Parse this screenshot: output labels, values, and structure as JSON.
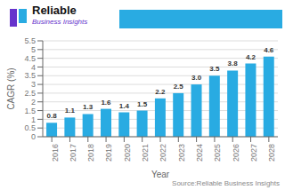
{
  "chart_data": {
    "type": "bar",
    "title": "Reliable",
    "subtitle": "Business Insights",
    "xlabel": "Year",
    "ylabel": "CAGR (%)",
    "categories": [
      "2016",
      "2017",
      "2018",
      "2019",
      "2020",
      "2021",
      "2022",
      "2023",
      "2024",
      "2025",
      "2026",
      "2027",
      "2028"
    ],
    "values": [
      0.8,
      1.1,
      1.3,
      1.6,
      1.4,
      1.5,
      2.2,
      2.5,
      3.0,
      3.5,
      3.8,
      4.2,
      4.6
    ],
    "value_labels": [
      "0.8",
      "1.1",
      "1.3",
      "1.6",
      "1.4",
      "1.5",
      "2.2",
      "2.5",
      "3.0",
      "3.5",
      "3.8",
      "4.2",
      "4.6"
    ],
    "data_labels": true,
    "color": "#29ABE2",
    "ylim": [
      0,
      5.5
    ],
    "yticks": [
      0,
      0.5,
      1,
      1.5,
      2,
      2.5,
      3,
      3.5,
      4,
      4.5,
      5,
      5.5
    ],
    "grid": true,
    "annotations": [
      "Source:Reliable Business Insights"
    ]
  }
}
